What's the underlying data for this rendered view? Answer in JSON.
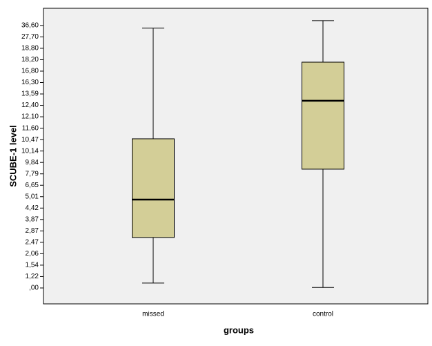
{
  "chart_data": {
    "type": "box",
    "x_label": "groups",
    "y_label": "SCUBE-1 level",
    "categories": [
      "missed",
      "control"
    ],
    "series": [
      {
        "color": "#d3ce97",
        "min": [
          0.52,
          0.05
        ],
        "q1": [
          2.64,
          8.63
        ],
        "median": [
          4.86,
          12.88
        ],
        "q3": [
          10.55,
          17.9
        ],
        "max": [
          34.5,
          40.4
        ]
      }
    ],
    "ylim": [
      -1.7,
      50
    ],
    "yticks": [
      {
        "value": 0,
        "label": ",00"
      },
      {
        "value": 1.22,
        "label": "1,22"
      },
      {
        "value": 1.54,
        "label": "1,54"
      },
      {
        "value": 2.06,
        "label": "2,06"
      },
      {
        "value": 2.47,
        "label": "2,47"
      },
      {
        "value": 2.87,
        "label": "2,87"
      },
      {
        "value": 3.87,
        "label": "3,87"
      },
      {
        "value": 4.42,
        "label": "4,42"
      },
      {
        "value": 5.01,
        "label": "5,01"
      },
      {
        "value": 6.65,
        "label": "6,65"
      },
      {
        "value": 7.79,
        "label": "7,79"
      },
      {
        "value": 9.84,
        "label": "9,84"
      },
      {
        "value": 10.14,
        "label": "10,14"
      },
      {
        "value": 10.47,
        "label": "10,47"
      },
      {
        "value": 11.6,
        "label": "11,60"
      },
      {
        "value": 12.1,
        "label": "12,10"
      },
      {
        "value": 12.4,
        "label": "12,40"
      },
      {
        "value": 13.59,
        "label": "13,59"
      },
      {
        "value": 16.3,
        "label": "16,30"
      },
      {
        "value": 16.8,
        "label": "16,80"
      },
      {
        "value": 18.2,
        "label": "18,20"
      },
      {
        "value": 18.8,
        "label": "18,80"
      },
      {
        "value": 27.7,
        "label": "27,70"
      },
      {
        "value": 36.6,
        "label": "36,60"
      }
    ]
  }
}
